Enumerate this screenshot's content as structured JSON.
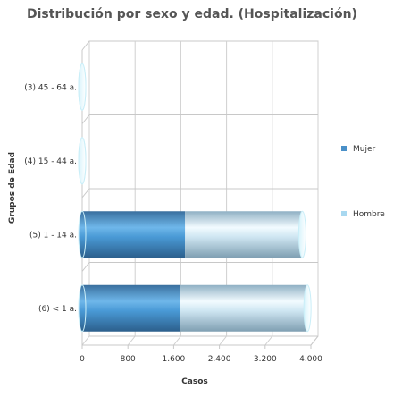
{
  "chart_data": {
    "type": "bar",
    "orientation": "horizontal",
    "style": "3d-stacked-cylinder",
    "title": "Distribución por sexo y edad. (Hospitalización)",
    "xlabel": "Casos",
    "ylabel": "Grupos de Edad",
    "xlim": [
      0,
      4000
    ],
    "xticks": [
      0,
      800,
      1600,
      2400,
      3200,
      4000
    ],
    "xtick_labels": [
      "0",
      "800",
      "1.600",
      "2.400",
      "3.200",
      "4.000"
    ],
    "categories": [
      "(3) 45 - 64 a.",
      "(4) 15 - 44 a.",
      "(5) 1 - 14 a.",
      "(6) < 1 a."
    ],
    "series": [
      {
        "name": "Mujer",
        "values": [
          0,
          0,
          1800,
          1710
        ],
        "color": "#4a90c8"
      },
      {
        "name": "Hombre",
        "values": [
          0,
          0,
          2050,
          2230
        ],
        "color": "#a8d8f0"
      }
    ],
    "grid": true,
    "legend_position": "right"
  }
}
